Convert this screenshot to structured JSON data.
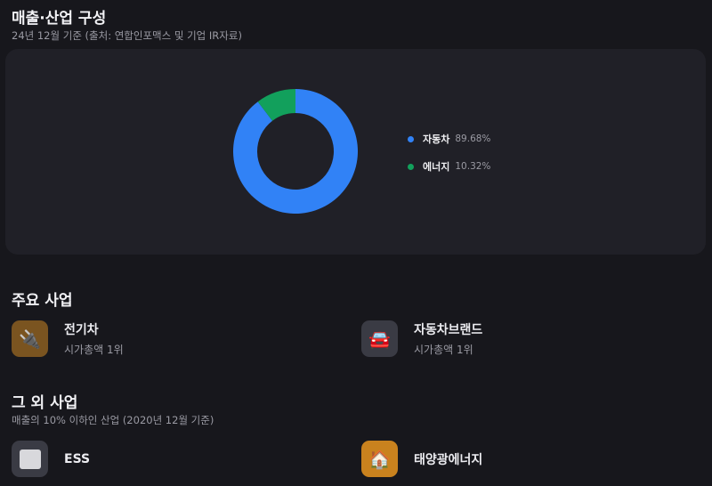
{
  "composition": {
    "title": "매출·산업 구성",
    "subtitle": "24년 12월 기준 (출처: 연합인포맥스 및 기업 IR자료)"
  },
  "chart_data": {
    "type": "pie",
    "donut": true,
    "series": [
      {
        "name": "자동차",
        "value": 89.68,
        "label": "89.68%",
        "color": "#3182f6"
      },
      {
        "name": "에너지",
        "value": 10.32,
        "label": "10.32%",
        "color": "#12a05c"
      }
    ],
    "legend": "right"
  },
  "main_business": {
    "title": "주요 사업",
    "items": [
      {
        "name": "전기차",
        "desc": "시가총액 1위",
        "icon": "electric-car-charger-icon"
      },
      {
        "name": "자동차브랜드",
        "desc": "시가총액 1위",
        "icon": "car-icon"
      }
    ]
  },
  "other_business": {
    "title": "그 외 사업",
    "subtitle": "매출의 10% 이하인 산업 (2020년 12월 기준)",
    "items": [
      {
        "name": "ESS",
        "icon": "battery-storage-icon"
      },
      {
        "name": "태양광에너지",
        "icon": "solar-house-icon"
      }
    ]
  }
}
